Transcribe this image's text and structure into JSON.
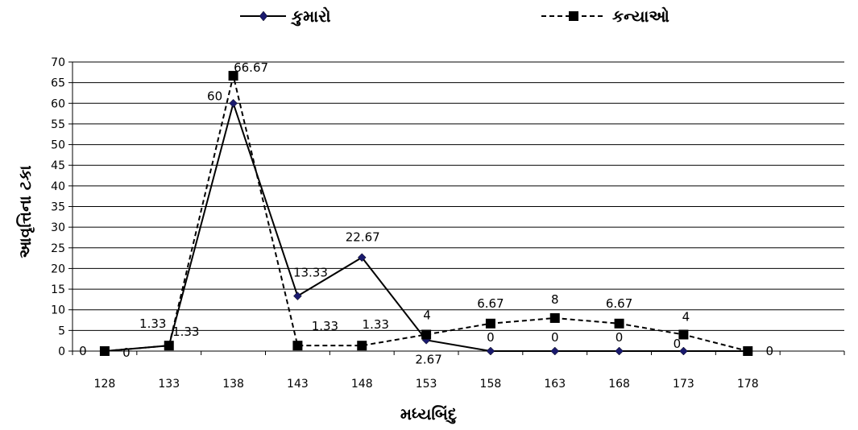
{
  "chart_data": {
    "type": "line",
    "title": "",
    "xlabel": "મધ્યબિંદુ",
    "ylabel": "આવૃત્તિના ટકા",
    "x": [
      128,
      133,
      138,
      143,
      148,
      153,
      158,
      163,
      168,
      173,
      178
    ],
    "ylim": [
      0,
      70
    ],
    "ytick_step": 5,
    "grid": "horizontal",
    "legend_position": "top",
    "series": [
      {
        "name": "કુમારો",
        "values": [
          0,
          1.33,
          60,
          13.33,
          22.67,
          2.67,
          0,
          0,
          0,
          0,
          0
        ],
        "labels": [
          "0",
          "1.33",
          "60",
          "13.33",
          "22.67",
          "2.67",
          "0",
          "0",
          "0",
          "0",
          ""
        ],
        "line_style": "solid",
        "marker": "diamond",
        "marker_color": "#1a1a6e",
        "color": "#000000"
      },
      {
        "name": "કન્યાઓ",
        "values": [
          0,
          1.33,
          66.67,
          1.33,
          1.33,
          4,
          6.67,
          8,
          6.67,
          4,
          0
        ],
        "labels": [
          "0",
          "1.33",
          "66.67",
          "1.33",
          "1.33",
          "4",
          "6.67",
          "8",
          "6.67",
          "4",
          "0"
        ],
        "line_style": "dashed",
        "marker": "square",
        "marker_color": "#000000",
        "color": "#000000"
      }
    ]
  }
}
